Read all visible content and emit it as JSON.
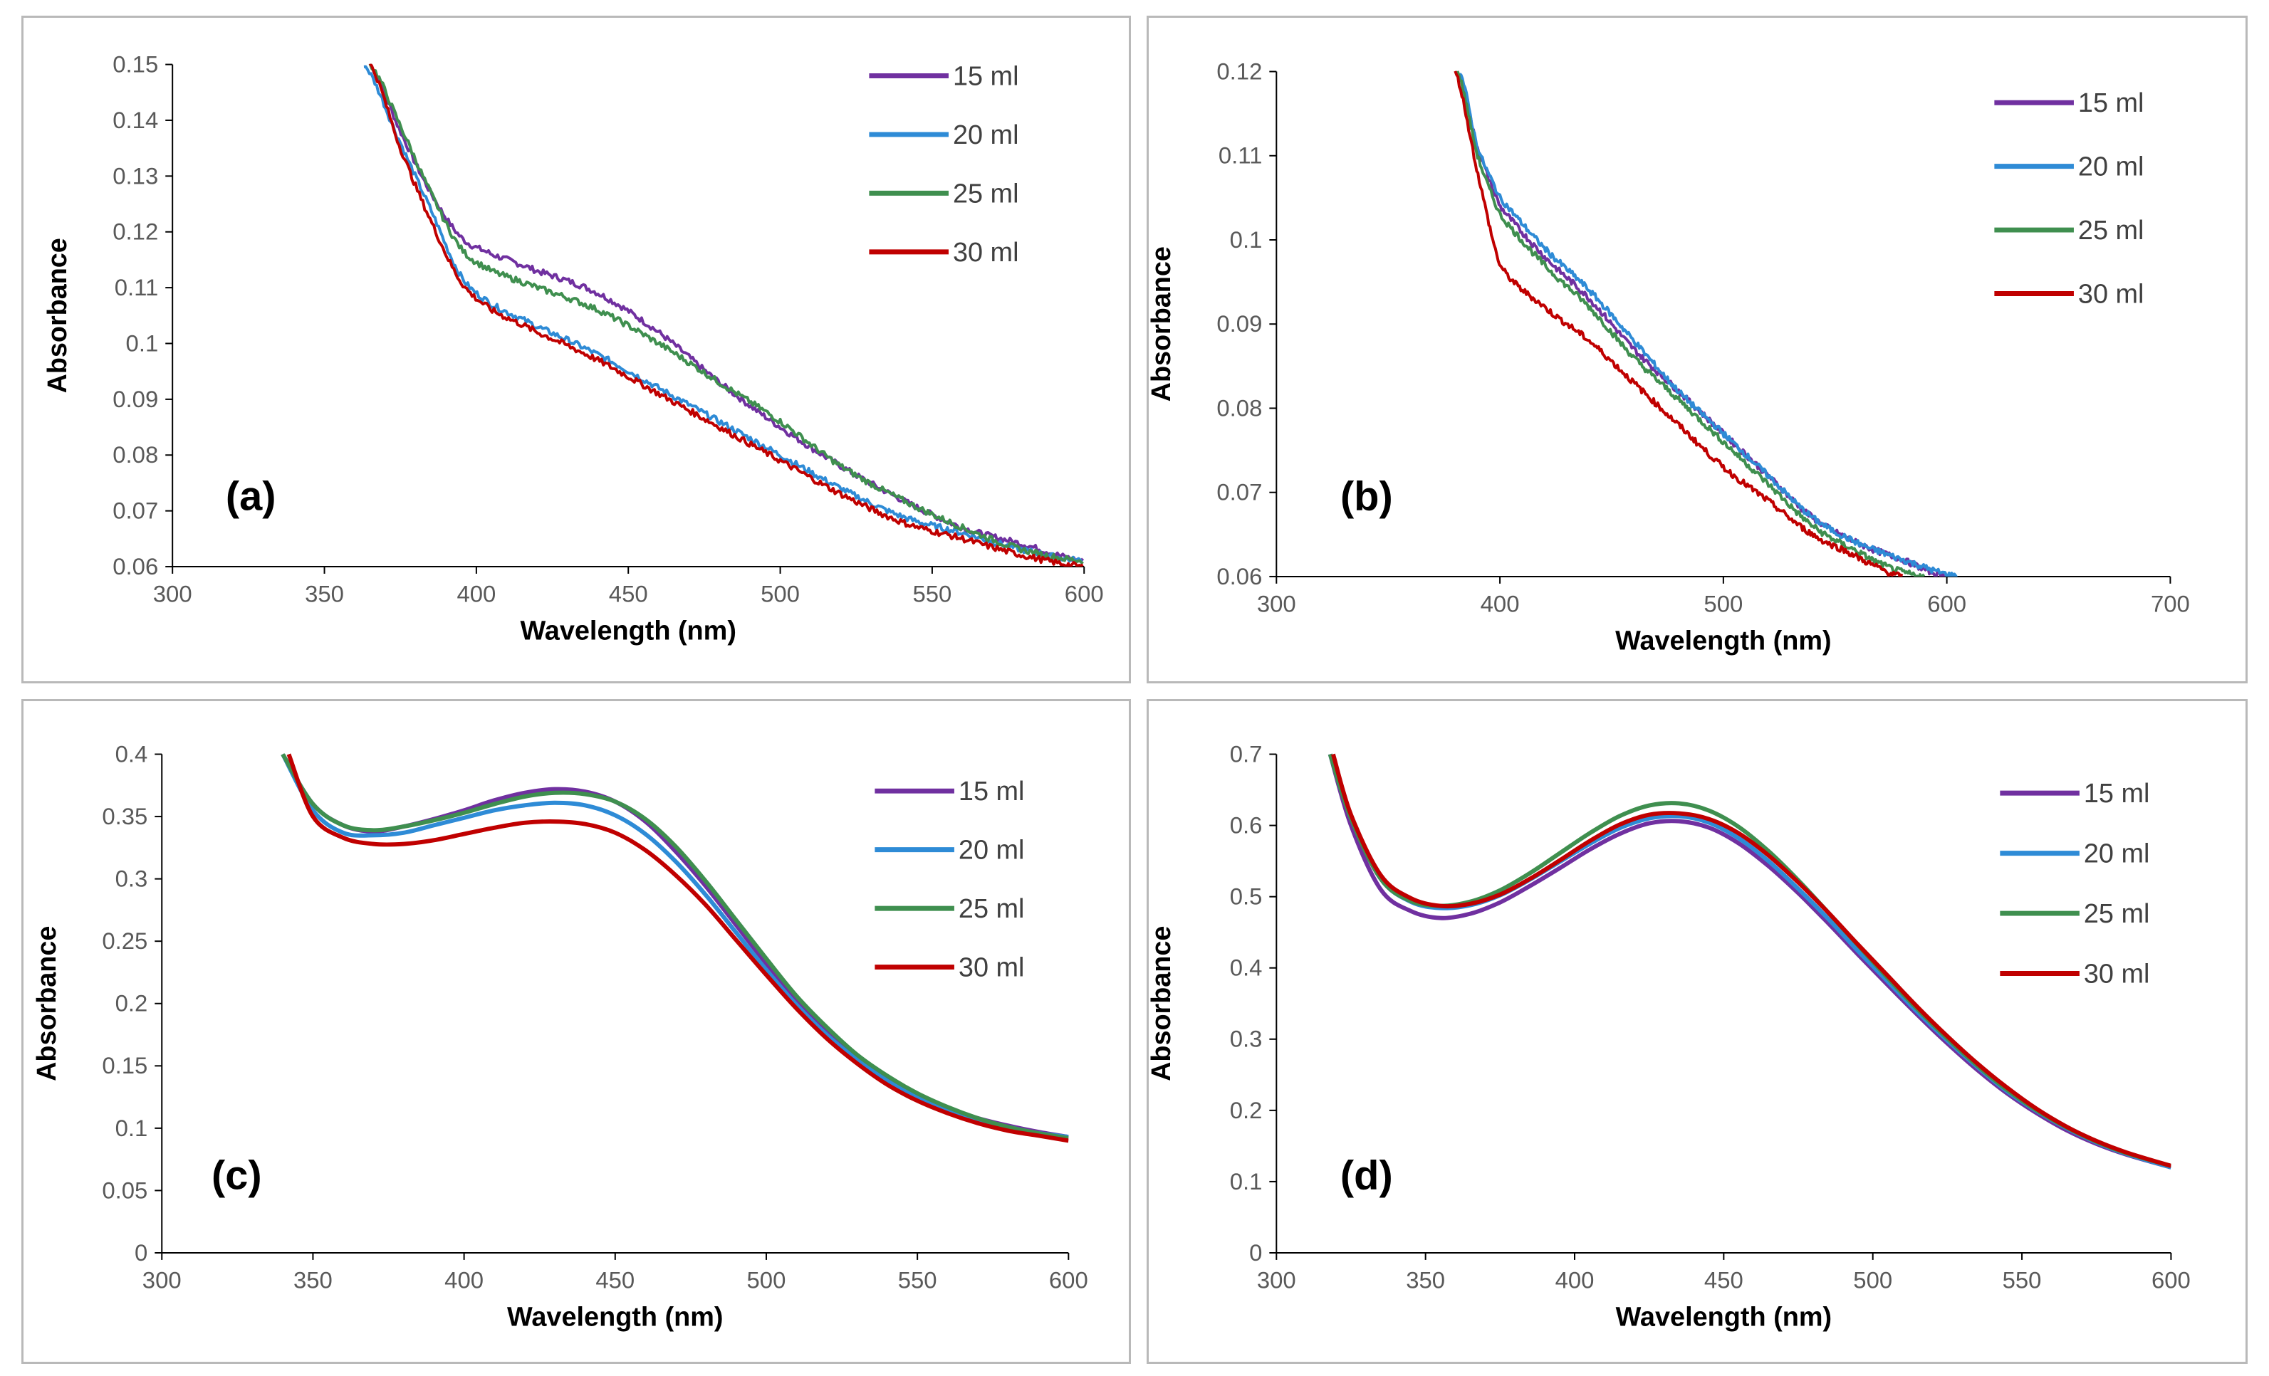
{
  "chart_data": [
    {
      "type": "line",
      "panel_label": "(a)",
      "xlabel": "Wavelength (nm)",
      "ylabel": "Absorbance",
      "xlim": [
        300,
        600
      ],
      "ylim": [
        0.06,
        0.15
      ],
      "x_ticks": [
        300,
        350,
        400,
        450,
        500,
        550,
        600
      ],
      "y_ticks": [
        0.06,
        0.07,
        0.08,
        0.09,
        0.1,
        0.11,
        0.12,
        0.13,
        0.14,
        0.15
      ],
      "x_tick_labels": [
        "300",
        "350",
        "400",
        "450",
        "500",
        "550",
        "600"
      ],
      "y_tick_labels": [
        "0.06",
        "0.07",
        "0.08",
        "0.09",
        "0.1",
        "0.11",
        "0.12",
        "0.13",
        "0.14",
        "0.15"
      ],
      "legend_position": "top-right",
      "noisy": true,
      "series": [
        {
          "name": "15 ml",
          "color": "#7030a0",
          "x": [
            365,
            375,
            385,
            395,
            405,
            420,
            440,
            460,
            480,
            500,
            520,
            540,
            560,
            580,
            600
          ],
          "y": [
            0.15,
            0.138,
            0.127,
            0.119,
            0.116,
            0.113,
            0.109,
            0.102,
            0.093,
            0.085,
            0.078,
            0.072,
            0.067,
            0.064,
            0.061
          ]
        },
        {
          "name": "20 ml",
          "color": "#2e8bd6",
          "x": [
            363,
            375,
            385,
            395,
            405,
            420,
            440,
            460,
            480,
            500,
            520,
            540,
            560,
            580,
            600
          ],
          "y": [
            0.15,
            0.136,
            0.124,
            0.112,
            0.107,
            0.103,
            0.098,
            0.092,
            0.086,
            0.08,
            0.074,
            0.069,
            0.066,
            0.063,
            0.061
          ]
        },
        {
          "name": "25 ml",
          "color": "#3f8f4f",
          "x": [
            365,
            375,
            385,
            395,
            405,
            420,
            440,
            460,
            480,
            500,
            520,
            540,
            560,
            580,
            600
          ],
          "y": [
            0.15,
            0.139,
            0.127,
            0.117,
            0.113,
            0.11,
            0.106,
            0.1,
            0.093,
            0.086,
            0.078,
            0.072,
            0.067,
            0.063,
            0.061
          ]
        },
        {
          "name": "30 ml",
          "color": "#c00000",
          "x": [
            365,
            375,
            385,
            395,
            405,
            420,
            440,
            460,
            480,
            500,
            520,
            540,
            560,
            580,
            600
          ],
          "y": [
            0.15,
            0.135,
            0.122,
            0.111,
            0.106,
            0.102,
            0.097,
            0.091,
            0.085,
            0.079,
            0.073,
            0.068,
            0.065,
            0.062,
            0.06
          ]
        }
      ]
    },
    {
      "type": "line",
      "panel_label": "(b)",
      "xlabel": "Wavelength (nm)",
      "ylabel": "Absorbance",
      "xlim": [
        300,
        700
      ],
      "ylim": [
        0.06,
        0.12
      ],
      "x_ticks": [
        300,
        400,
        500,
        600,
        700
      ],
      "y_ticks": [
        0.06,
        0.07,
        0.08,
        0.09,
        0.1,
        0.11,
        0.12
      ],
      "x_tick_labels": [
        "300",
        "400",
        "500",
        "600",
        "700"
      ],
      "y_tick_labels": [
        "0.06",
        "0.07",
        "0.08",
        "0.09",
        "0.1",
        "0.11",
        "0.12"
      ],
      "legend_position": "top-right",
      "noisy": true,
      "series": [
        {
          "name": "15 ml",
          "color": "#7030a0",
          "x": [
            381,
            390,
            400,
            420,
            440,
            460,
            480,
            500,
            520,
            540,
            560,
            580,
            600
          ],
          "y": [
            0.12,
            0.111,
            0.104,
            0.098,
            0.093,
            0.087,
            0.082,
            0.077,
            0.072,
            0.067,
            0.064,
            0.062,
            0.06
          ]
        },
        {
          "name": "20 ml",
          "color": "#2e8bd6",
          "x": [
            382,
            390,
            400,
            420,
            440,
            460,
            480,
            500,
            520,
            540,
            560,
            580,
            605
          ],
          "y": [
            0.12,
            0.111,
            0.105,
            0.099,
            0.094,
            0.088,
            0.082,
            0.077,
            0.072,
            0.067,
            0.064,
            0.062,
            0.06
          ]
        },
        {
          "name": "25 ml",
          "color": "#3f8f4f",
          "x": [
            381,
            390,
            400,
            420,
            440,
            460,
            480,
            500,
            520,
            540,
            560,
            575,
            590
          ],
          "y": [
            0.12,
            0.11,
            0.103,
            0.097,
            0.092,
            0.086,
            0.081,
            0.076,
            0.071,
            0.066,
            0.063,
            0.061,
            0.06
          ]
        },
        {
          "name": "30 ml",
          "color": "#c00000",
          "x": [
            380,
            390,
            400,
            420,
            440,
            460,
            480,
            500,
            520,
            540,
            555,
            570,
            580
          ],
          "y": [
            0.12,
            0.108,
            0.097,
            0.092,
            0.088,
            0.083,
            0.078,
            0.073,
            0.069,
            0.065,
            0.063,
            0.061,
            0.06
          ]
        }
      ]
    },
    {
      "type": "line",
      "panel_label": "(c)",
      "xlabel": "Wavelength (nm)",
      "ylabel": "Absorbance",
      "xlim": [
        300,
        600
      ],
      "ylim": [
        0,
        0.4
      ],
      "x_ticks": [
        300,
        350,
        400,
        450,
        500,
        550,
        600
      ],
      "y_ticks": [
        0,
        0.05,
        0.1,
        0.15,
        0.2,
        0.25,
        0.3,
        0.35,
        0.4
      ],
      "x_tick_labels": [
        "300",
        "350",
        "400",
        "450",
        "500",
        "550",
        "600"
      ],
      "y_tick_labels": [
        "0",
        "0.05",
        "0.1",
        "0.15",
        "0.2",
        "0.25",
        "0.3",
        "0.35",
        "0.4"
      ],
      "legend_position": "top-right",
      "noisy": false,
      "series": [
        {
          "name": "15 ml",
          "color": "#7030a0",
          "x": [
            340,
            350,
            360,
            370,
            380,
            390,
            400,
            410,
            420,
            430,
            440,
            450,
            460,
            470,
            480,
            490,
            500,
            510,
            520,
            530,
            540,
            550,
            560,
            570,
            580,
            590,
            600
          ],
          "y": [
            0.4,
            0.36,
            0.343,
            0.338,
            0.342,
            0.348,
            0.355,
            0.363,
            0.369,
            0.372,
            0.37,
            0.362,
            0.346,
            0.322,
            0.294,
            0.263,
            0.232,
            0.203,
            0.178,
            0.157,
            0.14,
            0.127,
            0.116,
            0.108,
            0.102,
            0.097,
            0.093
          ]
        },
        {
          "name": "20 ml",
          "color": "#2e8bd6",
          "x": [
            340,
            350,
            360,
            370,
            380,
            390,
            400,
            410,
            420,
            430,
            440,
            450,
            460,
            470,
            480,
            490,
            500,
            510,
            520,
            530,
            540,
            550,
            560,
            570,
            580,
            590,
            600
          ],
          "y": [
            0.4,
            0.355,
            0.337,
            0.335,
            0.337,
            0.343,
            0.349,
            0.355,
            0.359,
            0.361,
            0.359,
            0.351,
            0.336,
            0.314,
            0.287,
            0.257,
            0.227,
            0.199,
            0.175,
            0.155,
            0.138,
            0.125,
            0.115,
            0.107,
            0.101,
            0.096,
            0.093
          ]
        },
        {
          "name": "25 ml",
          "color": "#3f8f4f",
          "x": [
            340,
            350,
            360,
            370,
            380,
            390,
            400,
            410,
            420,
            430,
            440,
            450,
            460,
            470,
            480,
            490,
            500,
            510,
            520,
            530,
            540,
            550,
            560,
            570,
            580,
            590,
            600
          ],
          "y": [
            0.4,
            0.36,
            0.343,
            0.339,
            0.342,
            0.347,
            0.353,
            0.36,
            0.366,
            0.369,
            0.368,
            0.362,
            0.348,
            0.326,
            0.298,
            0.267,
            0.236,
            0.206,
            0.181,
            0.159,
            0.142,
            0.128,
            0.117,
            0.108,
            0.101,
            0.096,
            0.092
          ]
        },
        {
          "name": "30 ml",
          "color": "#c00000",
          "x": [
            342,
            350,
            360,
            370,
            380,
            390,
            400,
            410,
            420,
            430,
            440,
            450,
            460,
            470,
            480,
            490,
            500,
            510,
            520,
            530,
            540,
            550,
            560,
            570,
            580,
            590,
            600
          ],
          "y": [
            0.4,
            0.35,
            0.333,
            0.328,
            0.328,
            0.331,
            0.336,
            0.341,
            0.345,
            0.346,
            0.344,
            0.337,
            0.323,
            0.303,
            0.279,
            0.251,
            0.223,
            0.196,
            0.172,
            0.152,
            0.135,
            0.122,
            0.112,
            0.104,
            0.098,
            0.094,
            0.09
          ]
        }
      ]
    },
    {
      "type": "line",
      "panel_label": "(d)",
      "xlabel": "Wavelength (nm)",
      "ylabel": "Absorbance",
      "xlim": [
        300,
        600
      ],
      "ylim": [
        0,
        0.7
      ],
      "x_ticks": [
        300,
        350,
        400,
        450,
        500,
        550,
        600
      ],
      "y_ticks": [
        0,
        0.1,
        0.2,
        0.3,
        0.4,
        0.5,
        0.6,
        0.7
      ],
      "x_tick_labels": [
        "300",
        "350",
        "400",
        "450",
        "500",
        "550",
        "600"
      ],
      "y_tick_labels": [
        "0",
        "0.1",
        "0.2",
        "0.3",
        "0.4",
        "0.5",
        "0.6",
        "0.7"
      ],
      "legend_position": "top-right",
      "noisy": false,
      "series": [
        {
          "name": "15 ml",
          "color": "#7030a0",
          "x": [
            318,
            325,
            335,
            345,
            355,
            365,
            375,
            385,
            395,
            405,
            415,
            425,
            435,
            445,
            455,
            465,
            475,
            485,
            495,
            505,
            515,
            525,
            535,
            545,
            555,
            565,
            575,
            585,
            600
          ],
          "y": [
            0.7,
            0.6,
            0.51,
            0.48,
            0.47,
            0.476,
            0.492,
            0.515,
            0.54,
            0.566,
            0.588,
            0.603,
            0.606,
            0.597,
            0.575,
            0.543,
            0.505,
            0.463,
            0.419,
            0.376,
            0.334,
            0.294,
            0.257,
            0.224,
            0.196,
            0.172,
            0.153,
            0.138,
            0.12
          ]
        },
        {
          "name": "20 ml",
          "color": "#2e8bd6",
          "x": [
            318,
            325,
            335,
            345,
            355,
            365,
            375,
            385,
            395,
            405,
            415,
            425,
            435,
            445,
            455,
            465,
            475,
            485,
            495,
            505,
            515,
            525,
            535,
            545,
            555,
            565,
            575,
            585,
            600
          ],
          "y": [
            0.7,
            0.61,
            0.525,
            0.493,
            0.484,
            0.488,
            0.502,
            0.524,
            0.549,
            0.574,
            0.596,
            0.61,
            0.613,
            0.604,
            0.582,
            0.55,
            0.511,
            0.469,
            0.424,
            0.381,
            0.338,
            0.298,
            0.261,
            0.227,
            0.199,
            0.175,
            0.155,
            0.139,
            0.12
          ]
        },
        {
          "name": "25 ml",
          "color": "#3f8f4f",
          "x": [
            318,
            325,
            335,
            345,
            355,
            365,
            375,
            385,
            395,
            405,
            415,
            425,
            435,
            445,
            455,
            465,
            475,
            485,
            495,
            505,
            515,
            525,
            535,
            545,
            555,
            565,
            575,
            585,
            600
          ],
          "y": [
            0.7,
            0.61,
            0.525,
            0.494,
            0.487,
            0.493,
            0.509,
            0.533,
            0.561,
            0.589,
            0.613,
            0.628,
            0.631,
            0.621,
            0.598,
            0.564,
            0.523,
            0.478,
            0.432,
            0.386,
            0.342,
            0.301,
            0.263,
            0.229,
            0.2,
            0.176,
            0.156,
            0.14,
            0.122
          ]
        },
        {
          "name": "30 ml",
          "color": "#c00000",
          "x": [
            319,
            325,
            335,
            345,
            355,
            365,
            375,
            385,
            395,
            405,
            415,
            425,
            435,
            445,
            455,
            465,
            475,
            485,
            495,
            505,
            515,
            525,
            535,
            545,
            555,
            565,
            575,
            585,
            600
          ],
          "y": [
            0.7,
            0.615,
            0.53,
            0.498,
            0.487,
            0.49,
            0.503,
            0.525,
            0.551,
            0.578,
            0.601,
            0.615,
            0.617,
            0.609,
            0.589,
            0.558,
            0.52,
            0.478,
            0.433,
            0.389,
            0.345,
            0.304,
            0.266,
            0.232,
            0.202,
            0.177,
            0.157,
            0.141,
            0.122
          ]
        }
      ]
    }
  ]
}
